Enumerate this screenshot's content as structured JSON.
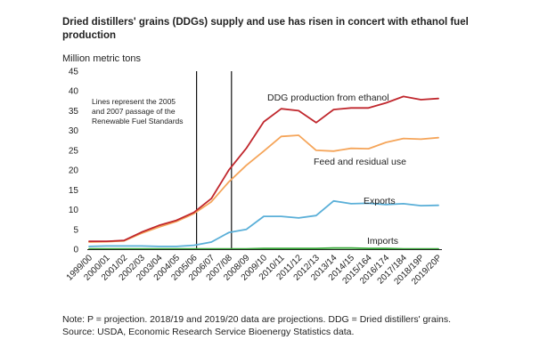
{
  "chart_data": {
    "type": "line",
    "title": "Dried distillers' grains (DDGs) supply and use has risen in concert with ethanol fuel production",
    "ylabel": "Million metric tons",
    "xlabel": "",
    "ylim": [
      0,
      45
    ],
    "yticks": [
      0,
      5,
      10,
      15,
      20,
      25,
      30,
      35,
      40,
      45
    ],
    "grid": false,
    "categories": [
      "1999/00",
      "2000/01",
      "2001/02",
      "2002/03",
      "2003/04",
      "2004/05",
      "2005/06",
      "2006/07",
      "2007/08",
      "2008/09",
      "2009/10",
      "2010/11",
      "2011/12",
      "2012/13",
      "2013/14",
      "2014/15",
      "2015/164",
      "2016/174",
      "2017/184",
      "2018/19P",
      "2019/20P"
    ],
    "series": [
      {
        "name": "DDG production from ethanol",
        "color": "#c0272d",
        "values": [
          2.0,
          2.0,
          2.2,
          4.3,
          6.0,
          7.3,
          9.3,
          12.8,
          20.0,
          25.5,
          32.2,
          35.5,
          35.0,
          32.0,
          35.3,
          35.7,
          35.7,
          37.0,
          38.6,
          37.8,
          38.1
        ]
      },
      {
        "name": "Feed and residual use",
        "color": "#f5a55a",
        "values": [
          1.8,
          1.9,
          2.1,
          4.0,
          5.6,
          7.0,
          9.0,
          12.0,
          17.0,
          21.2,
          24.8,
          28.5,
          28.8,
          25.0,
          24.8,
          25.5,
          25.4,
          27.0,
          28.0,
          27.8,
          28.2
        ]
      },
      {
        "name": "Exports",
        "color": "#5aafd8",
        "values": [
          0.7,
          0.8,
          0.8,
          0.8,
          0.7,
          0.7,
          1.0,
          1.8,
          4.2,
          5.0,
          8.3,
          8.3,
          7.9,
          8.5,
          12.2,
          11.5,
          11.6,
          11.3,
          11.5,
          11.0,
          11.1
        ]
      },
      {
        "name": "Imports",
        "color": "#3aa83a",
        "values": [
          0.1,
          0.1,
          0.1,
          0.1,
          0.1,
          0.1,
          0.1,
          0.1,
          0.1,
          0.1,
          0.2,
          0.2,
          0.2,
          0.2,
          0.3,
          0.3,
          0.2,
          0.2,
          0.1,
          0.1,
          0.1
        ]
      }
    ],
    "vertical_markers": [
      "2005/06",
      "2007/08"
    ],
    "annotations": {
      "markers_note": [
        "Lines represent the 2005",
        "and 2007 passage of the",
        "Renewable Fuel Standards"
      ]
    }
  },
  "notes": {
    "line1": "Note: P = projection. 2018/19 and 2019/20 data are projections. DDG = Dried distillers' grains.",
    "line2": "Source: USDA, Economic Research Service Bioenergy Statistics data."
  }
}
